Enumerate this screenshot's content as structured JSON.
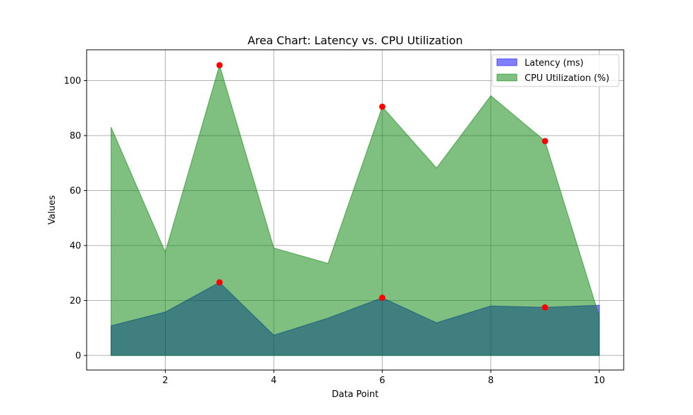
{
  "chart_data": {
    "type": "area",
    "title": "Area Chart: Latency vs. CPU Utilization",
    "xlabel": "Data Point",
    "ylabel": "Values",
    "x": [
      1,
      2,
      3,
      4,
      5,
      6,
      7,
      8,
      9,
      10
    ],
    "xlim": [
      0.55,
      10.45
    ],
    "ylim": [
      -5.3,
      111.2
    ],
    "xticks": [
      2,
      4,
      6,
      8,
      10
    ],
    "yticks": [
      0,
      20,
      40,
      60,
      80,
      100
    ],
    "grid": true,
    "legend_position": "top-right",
    "series": [
      {
        "name": "Latency (ms)",
        "color": "#0000ff",
        "values": [
          10.8,
          15.8,
          26.6,
          7.4,
          13.6,
          21.0,
          11.9,
          18.0,
          17.5,
          18.3
        ],
        "marked_points": [
          {
            "x": 3,
            "y": 26.6
          },
          {
            "x": 6,
            "y": 21.0
          },
          {
            "x": 9,
            "y": 17.5
          }
        ]
      },
      {
        "name": "CPU Utilization (%)",
        "color": "#008000",
        "values": [
          83.1,
          37.6,
          105.6,
          39.1,
          33.5,
          90.5,
          68.2,
          94.5,
          78.0,
          14.2
        ],
        "marked_points": [
          {
            "x": 3,
            "y": 105.6
          },
          {
            "x": 6,
            "y": 90.5
          },
          {
            "x": 9,
            "y": 78.0
          }
        ]
      }
    ],
    "marker_color": "#ff0000"
  }
}
